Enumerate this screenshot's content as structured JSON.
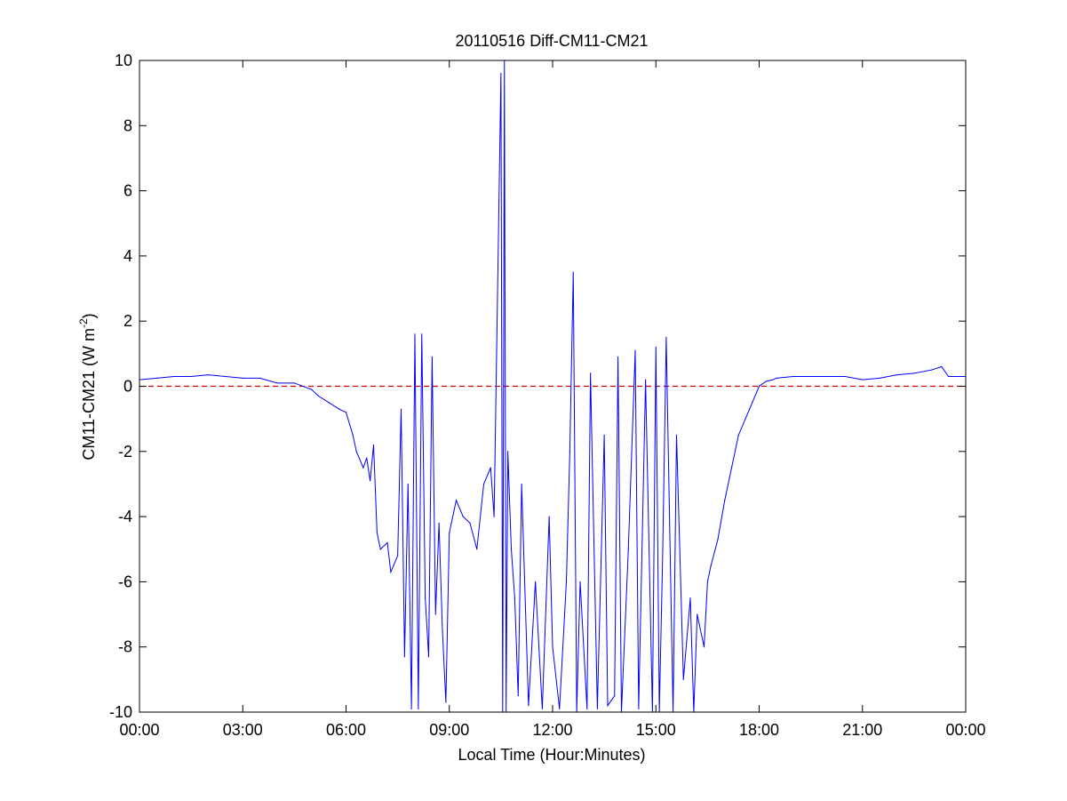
{
  "chart_data": {
    "type": "line",
    "title": "20110516 Diff-CM11-CM21",
    "xlabel": "Local Time (Hour:Minutes)",
    "ylabel_main": "CM11-CM21 (W m",
    "ylabel_sup": "-2",
    "ylabel_close": ")",
    "xlim": [
      0,
      24
    ],
    "ylim": [
      -10,
      10
    ],
    "x_ticks": [
      0,
      3,
      6,
      9,
      12,
      15,
      18,
      21,
      24
    ],
    "x_tick_labels": [
      "00:00",
      "03:00",
      "06:00",
      "09:00",
      "12:00",
      "15:00",
      "18:00",
      "21:00",
      "00:00"
    ],
    "y_ticks": [
      -10,
      -8,
      -6,
      -4,
      -2,
      0,
      2,
      4,
      6,
      8,
      10
    ],
    "y_tick_labels": [
      "-10",
      "-8",
      "-6",
      "-4",
      "-2",
      "0",
      "2",
      "4",
      "6",
      "8",
      "10"
    ],
    "grid": false,
    "colors": {
      "series": "#0000ff",
      "reference": "#cc0000",
      "axes": "#000000"
    },
    "reference_line": {
      "y": 0,
      "style": "dashed"
    },
    "series": [
      {
        "x": [
          0.0,
          0.5,
          1.0,
          1.5,
          2.0,
          2.5,
          3.0,
          3.5,
          4.0,
          4.5,
          5.0,
          5.2,
          5.5,
          5.8,
          6.0,
          6.2,
          6.3,
          6.5,
          6.6,
          6.7,
          6.8,
          6.9,
          7.0,
          7.2,
          7.3,
          7.5,
          7.6,
          7.7,
          7.8,
          7.9,
          8.0,
          8.1,
          8.2,
          8.3,
          8.4,
          8.5,
          8.6,
          8.7,
          8.8,
          8.9,
          9.0,
          9.2,
          9.4,
          9.6,
          9.8,
          10.0,
          10.2,
          10.3,
          10.4,
          10.5,
          10.55,
          10.6,
          10.65,
          10.7,
          10.8,
          10.9,
          11.0,
          11.1,
          11.3,
          11.5,
          11.7,
          11.9,
          12.0,
          12.2,
          12.4,
          12.5,
          12.6,
          12.7,
          12.8,
          13.0,
          13.1,
          13.3,
          13.5,
          13.6,
          13.8,
          13.9,
          14.0,
          14.2,
          14.4,
          14.5,
          14.7,
          14.9,
          15.0,
          15.1,
          15.2,
          15.3,
          15.5,
          15.6,
          15.8,
          16.0,
          16.1,
          16.2,
          16.4,
          16.5,
          16.6,
          16.8,
          17.0,
          17.2,
          17.4,
          17.6,
          17.8,
          18.0,
          18.2,
          18.4,
          18.5,
          19.0,
          19.5,
          20.0,
          20.5,
          21.0,
          21.5,
          22.0,
          22.5,
          23.0,
          23.3,
          23.5,
          24.0
        ],
        "y": [
          0.2,
          0.25,
          0.3,
          0.3,
          0.35,
          0.3,
          0.25,
          0.25,
          0.1,
          0.1,
          -0.1,
          -0.3,
          -0.5,
          -0.7,
          -0.8,
          -1.5,
          -2.0,
          -2.5,
          -2.2,
          -2.9,
          -1.8,
          -4.5,
          -5.0,
          -4.8,
          -5.7,
          -5.2,
          -0.7,
          -8.3,
          -3.0,
          -9.9,
          1.6,
          -9.9,
          1.6,
          -6.5,
          -8.3,
          0.9,
          -7.0,
          -4.2,
          -7.5,
          -9.7,
          -4.5,
          -3.5,
          -4.0,
          -4.2,
          -5.0,
          -3.0,
          -2.5,
          -4.0,
          2.8,
          9.6,
          -10.0,
          10.0,
          -10.0,
          -2.0,
          -5.0,
          -6.5,
          -9.5,
          -3.0,
          -9.8,
          -6.0,
          -9.9,
          -4.0,
          -8.0,
          -9.9,
          -6.0,
          -2.0,
          3.5,
          -10.0,
          -6.0,
          -9.9,
          0.4,
          -9.9,
          -1.5,
          -9.8,
          -9.5,
          0.9,
          -10.0,
          -5.0,
          1.1,
          -9.9,
          0.2,
          -10.0,
          1.2,
          -10.0,
          -5.0,
          1.5,
          -10.0,
          -1.5,
          -9.0,
          -6.5,
          -10.0,
          -7.0,
          -8.0,
          -6.0,
          -5.5,
          -4.7,
          -3.5,
          -2.5,
          -1.5,
          -1.0,
          -0.5,
          0.0,
          0.15,
          0.2,
          0.25,
          0.3,
          0.3,
          0.3,
          0.3,
          0.2,
          0.25,
          0.35,
          0.4,
          0.5,
          0.6,
          0.3,
          0.3
        ]
      }
    ]
  }
}
